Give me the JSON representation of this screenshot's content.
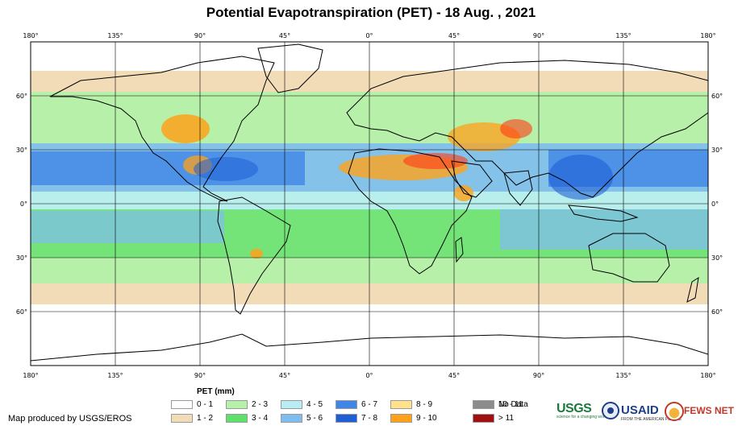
{
  "title": "Potential Evapotranspiration (PET) - 18 Aug. , 2021",
  "axes": {
    "lon_labels": [
      "180°",
      "135°",
      "90°",
      "45°",
      "0°",
      "45°",
      "90°",
      "135°",
      "180°"
    ],
    "lat_labels": [
      "60°",
      "30°",
      "0°",
      "30°",
      "60°"
    ]
  },
  "legend": {
    "title": "PET (mm)",
    "items": [
      {
        "label": "0 - 1",
        "color": "#ffffff"
      },
      {
        "label": "1 - 2",
        "color": "#f2dcb8"
      },
      {
        "label": "2 - 3",
        "color": "#b7f0a8"
      },
      {
        "label": "3 - 4",
        "color": "#5fe068"
      },
      {
        "label": "4 - 5",
        "color": "#b8eef3"
      },
      {
        "label": "5 - 6",
        "color": "#7fbdf0"
      },
      {
        "label": "6 - 7",
        "color": "#3f86e6"
      },
      {
        "label": "7 - 8",
        "color": "#1f5fd6"
      },
      {
        "label": "8 - 9",
        "color": "#ffe28a"
      },
      {
        "label": "9 - 10",
        "color": "#ffa21a"
      },
      {
        "label": "10 - 11",
        "color": "#ff3b16"
      },
      {
        "label": "> 11",
        "color": "#a01010"
      },
      {
        "label": "No Data",
        "color": "#8c8c8c"
      }
    ]
  },
  "credit": "Map produced by USGS/EROS",
  "logos": {
    "usgs": "USGS",
    "usgs_tagline": "science for a changing world",
    "usaid": "USAID",
    "usaid_tagline": "FROM THE AMERICAN PEOPLE",
    "fews": "FEWS NET"
  }
}
